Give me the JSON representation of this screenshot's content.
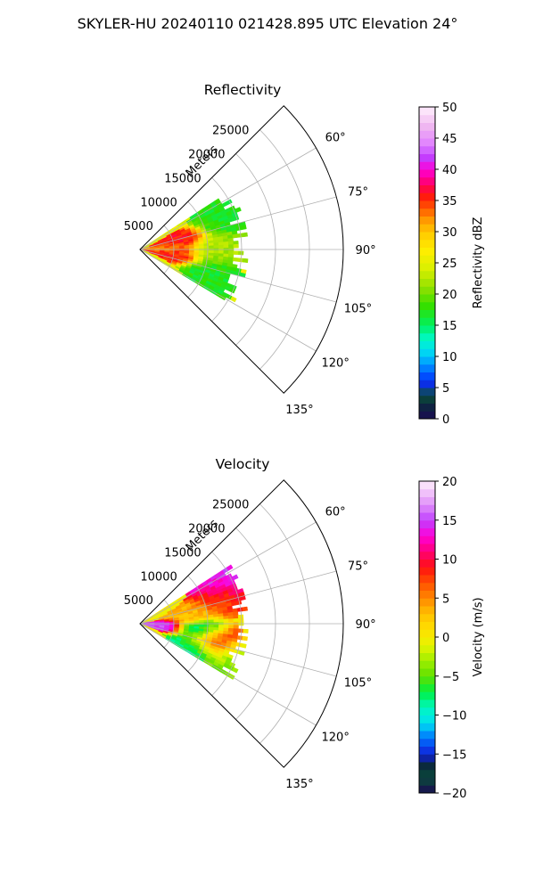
{
  "figure": {
    "suptitle": "SKYLER-HU  20240110  021428.895 UTC Elevation 24°"
  },
  "chart_data": [
    {
      "type": "heatmap",
      "projection": "polar-sector",
      "title": "Reflectivity",
      "range_axis_label": "Meters",
      "range_ticks": [
        5000,
        10000,
        15000,
        20000,
        25000
      ],
      "range_tick_labels": [
        "5000",
        "10000",
        "15000",
        "20000",
        "25000"
      ],
      "range_max_m": 30000,
      "azimuth_range_deg": [
        45,
        135
      ],
      "azimuth_ticks_deg": [
        60,
        75,
        90,
        105,
        120,
        135
      ],
      "azimuth_tick_labels": [
        "60°",
        "75°",
        "90°",
        "105°",
        "120°",
        "135°"
      ],
      "grid": true,
      "colorbar": {
        "label": "Reflectivity dBZ",
        "vmin": 0,
        "vmax": 50,
        "ticks": [
          0,
          5,
          10,
          15,
          20,
          25,
          30,
          35,
          40,
          45,
          50
        ],
        "tick_labels": [
          "0",
          "5",
          "10",
          "15",
          "20",
          "25",
          "30",
          "35",
          "40",
          "45",
          "50"
        ]
      },
      "data_coverage": {
        "max_range_m": 16000,
        "azimuth_extent_deg": [
          57,
          121
        ]
      },
      "features": [
        {
          "azimuth_deg": 79,
          "range_m": 6000,
          "value": 36
        },
        {
          "azimuth_deg": 98,
          "range_m": 5000,
          "value": 36
        },
        {
          "azimuth_deg": 88,
          "range_m": 4000,
          "value": 32
        },
        {
          "azimuth_deg": 90,
          "range_m": 11000,
          "value": 22
        },
        {
          "azimuth_deg": 67,
          "range_m": 13000,
          "value": 17
        },
        {
          "azimuth_deg": 110,
          "range_m": 11000,
          "value": 17
        }
      ]
    },
    {
      "type": "heatmap",
      "projection": "polar-sector",
      "title": "Velocity",
      "range_axis_label": "Meters",
      "range_ticks": [
        5000,
        10000,
        15000,
        20000,
        25000
      ],
      "range_tick_labels": [
        "5000",
        "10000",
        "15000",
        "20000",
        "25000"
      ],
      "range_max_m": 30000,
      "azimuth_range_deg": [
        45,
        135
      ],
      "azimuth_ticks_deg": [
        60,
        75,
        90,
        105,
        120,
        135
      ],
      "azimuth_tick_labels": [
        "60°",
        "75°",
        "90°",
        "105°",
        "120°",
        "135°"
      ],
      "grid": true,
      "colorbar": {
        "label": "Velocity (m/s)",
        "vmin": -20,
        "vmax": 20,
        "ticks": [
          -20,
          -15,
          -10,
          -5,
          0,
          5,
          10,
          15,
          20
        ],
        "tick_labels": [
          "−20",
          "−15",
          "−10",
          "−5",
          "0",
          "5",
          "10",
          "15",
          "20"
        ]
      },
      "data_coverage": {
        "max_range_m": 16000,
        "azimuth_extent_deg": [
          57,
          121
        ]
      },
      "features": [
        {
          "azimuth_deg": 62,
          "range_m": 13500,
          "value": 14
        },
        {
          "azimuth_deg": 72,
          "range_m": 12000,
          "value": 8
        },
        {
          "azimuth_deg": 80,
          "range_m": 8000,
          "value": 3
        },
        {
          "azimuth_deg": 96,
          "range_m": 3000,
          "value": 15
        },
        {
          "azimuth_deg": 98,
          "range_m": 9000,
          "value": -10
        },
        {
          "azimuth_deg": 104,
          "range_m": 11000,
          "value": 12
        },
        {
          "azimuth_deg": 112,
          "range_m": 9000,
          "value": -8
        },
        {
          "azimuth_deg": 112,
          "range_m": 14000,
          "value": -4
        }
      ]
    }
  ]
}
